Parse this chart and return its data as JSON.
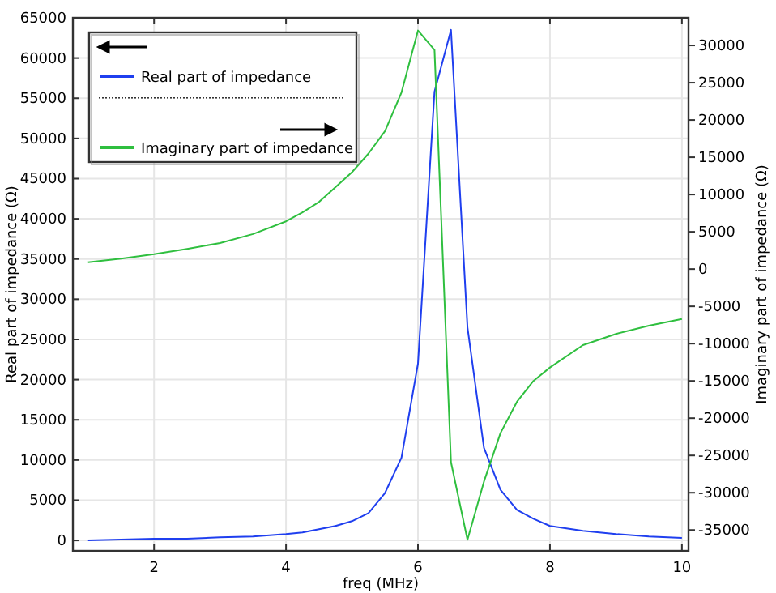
{
  "chart_data": {
    "type": "line",
    "xlabel": "freq (MHz)",
    "ylabel": "Real part of impedance (Ω)",
    "y2label": "Imaginary part of impedance (Ω)",
    "x": [
      1,
      1.5,
      2,
      2.5,
      3,
      3.5,
      4,
      4.25,
      4.5,
      4.75,
      5,
      5.25,
      5.5,
      5.75,
      6,
      6.25,
      6.5,
      6.75,
      7,
      7.25,
      7.5,
      7.75,
      8,
      8.5,
      9,
      9.5,
      10
    ],
    "series": [
      {
        "name": "Real part of impedance",
        "color": "#1f3fef",
        "values": [
          0,
          100,
          200,
          200,
          400,
          500,
          800,
          1000,
          1400,
          1800,
          2400,
          3400,
          5900,
          10300,
          22000,
          55800,
          63500,
          26500,
          11500,
          6300,
          3800,
          2700,
          1800,
          1200,
          800,
          500,
          300
        ]
      },
      {
        "name": "Imaginary part of impedance",
        "color": "#2fbf3f",
        "axis": "y2",
        "values": [
          900,
          1400,
          2000,
          2700,
          3500,
          4700,
          6400,
          7600,
          9000,
          11000,
          13000,
          15500,
          18500,
          23700,
          32000,
          29400,
          -25900,
          -36300,
          -28500,
          -22000,
          -17800,
          -15000,
          -13200,
          -10200,
          -8700,
          -7600,
          -6700
        ]
      }
    ],
    "xlim": [
      0.77,
      10.1
    ],
    "xticks": [
      2,
      4,
      6,
      8,
      10
    ],
    "ylim": [
      -1300,
      65000
    ],
    "yticks": [
      0,
      5000,
      10000,
      15000,
      20000,
      25000,
      30000,
      35000,
      40000,
      45000,
      50000,
      55000,
      60000,
      65000
    ],
    "y2lim": [
      -37800,
      33700
    ],
    "y2ticks": [
      -35000,
      -30000,
      -25000,
      -20000,
      -15000,
      -10000,
      -5000,
      0,
      5000,
      10000,
      15000,
      20000,
      25000,
      30000
    ],
    "grid": true,
    "legend": "top left",
    "line_style": "solid",
    "marker": "none"
  }
}
